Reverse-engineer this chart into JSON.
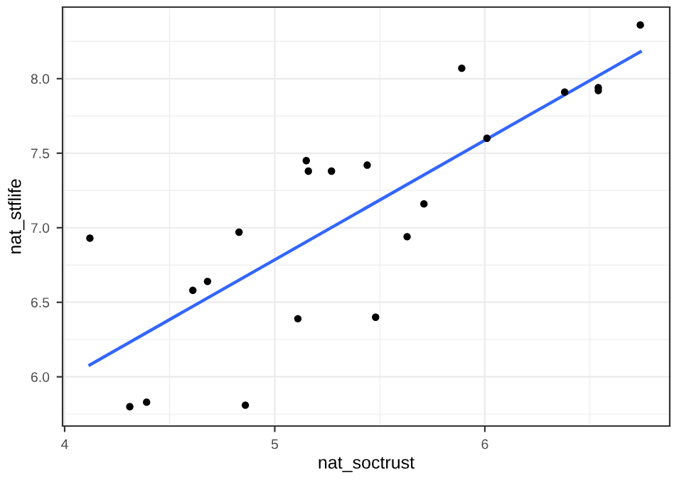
{
  "chart_data": {
    "type": "scatter",
    "xlabel": "nat_soctrust",
    "ylabel": "nat_stflife",
    "xlim": [
      3.99,
      6.88
    ],
    "ylim": [
      5.67,
      8.48
    ],
    "xticks": [
      4,
      5,
      6
    ],
    "yticks": [
      {
        "value": 6,
        "label": "6.0"
      },
      {
        "value": 6.5,
        "label": "6.5"
      },
      {
        "value": 7,
        "label": "7.0"
      },
      {
        "value": 7.5,
        "label": "7.5"
      },
      {
        "value": 8,
        "label": "8.0"
      }
    ],
    "grid": true,
    "marker": "circle",
    "series": [
      {
        "color": "#000000",
        "x": [
          4.12,
          4.31,
          4.39,
          4.61,
          4.68,
          4.83,
          4.86,
          5.11,
          5.15,
          5.16,
          5.27,
          5.44,
          5.48,
          5.63,
          5.71,
          5.89,
          6.01,
          6.38,
          6.54,
          6.54,
          6.74
        ],
        "values": [
          6.93,
          5.8,
          5.83,
          6.58,
          6.64,
          6.97,
          5.81,
          6.39,
          7.45,
          7.38,
          7.38,
          7.42,
          6.4,
          6.94,
          7.16,
          8.07,
          7.6,
          7.91,
          7.94,
          7.92,
          8.36
        ]
      },
      {
        "type": "line",
        "marker": "none",
        "color": "#3366ff",
        "x": [
          4.12,
          6.74
        ],
        "values": [
          6.08,
          8.18
        ]
      }
    ]
  }
}
